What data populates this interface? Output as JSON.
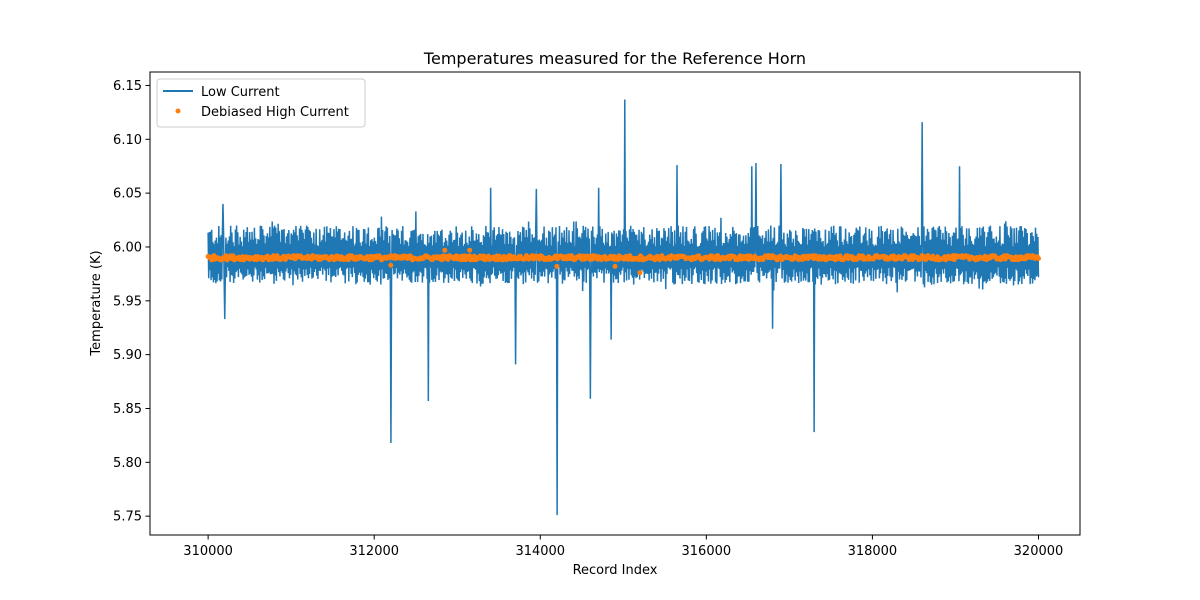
{
  "chart_data": {
    "type": "line",
    "title": "Temperatures measured for the Reference Horn",
    "xlabel": "Record Index",
    "ylabel": "Temperature (K)",
    "xlim": [
      309300,
      320500
    ],
    "ylim": [
      5.7325,
      6.1625
    ],
    "xticks": [
      310000,
      312000,
      314000,
      316000,
      318000,
      320000
    ],
    "yticks": [
      5.75,
      5.8,
      5.85,
      5.9,
      5.95,
      6.0,
      6.05,
      6.1,
      6.15
    ],
    "ytick_labels": [
      "5.75",
      "5.80",
      "5.85",
      "5.90",
      "5.95",
      "6.00",
      "6.05",
      "6.10",
      "6.15"
    ],
    "grid": false,
    "legend_position": "top-left",
    "series": [
      {
        "name": "Low Current",
        "kind": "line",
        "color": "#1f77b4",
        "x_start": 310000,
        "x_end": 320000,
        "baseline": 5.99,
        "band": [
          5.965,
          6.02
        ],
        "spikes": [
          {
            "x": 310180,
            "y": 6.04
          },
          {
            "x": 310200,
            "y": 5.933
          },
          {
            "x": 312200,
            "y": 5.818
          },
          {
            "x": 312500,
            "y": 6.033
          },
          {
            "x": 312650,
            "y": 5.857
          },
          {
            "x": 313400,
            "y": 6.055
          },
          {
            "x": 313700,
            "y": 5.891
          },
          {
            "x": 313950,
            "y": 6.054
          },
          {
            "x": 314200,
            "y": 5.751
          },
          {
            "x": 314600,
            "y": 5.859
          },
          {
            "x": 314700,
            "y": 6.055
          },
          {
            "x": 314850,
            "y": 5.914
          },
          {
            "x": 315020,
            "y": 6.137
          },
          {
            "x": 315650,
            "y": 6.076
          },
          {
            "x": 316550,
            "y": 6.075
          },
          {
            "x": 316600,
            "y": 6.078
          },
          {
            "x": 316800,
            "y": 5.924
          },
          {
            "x": 316900,
            "y": 6.077
          },
          {
            "x": 317300,
            "y": 5.828
          },
          {
            "x": 318600,
            "y": 6.116
          },
          {
            "x": 319050,
            "y": 6.075
          }
        ]
      },
      {
        "name": "Debiased High Current",
        "kind": "scatter",
        "color": "#ff7f0e",
        "x_start": 310000,
        "x_end": 320000,
        "baseline": 5.99,
        "outliers": [
          {
            "x": 312200,
            "y": 5.983
          },
          {
            "x": 314200,
            "y": 5.982
          },
          {
            "x": 315200,
            "y": 5.976
          },
          {
            "x": 313150,
            "y": 5.997
          },
          {
            "x": 312850,
            "y": 5.997
          },
          {
            "x": 314900,
            "y": 5.982
          }
        ]
      }
    ]
  }
}
